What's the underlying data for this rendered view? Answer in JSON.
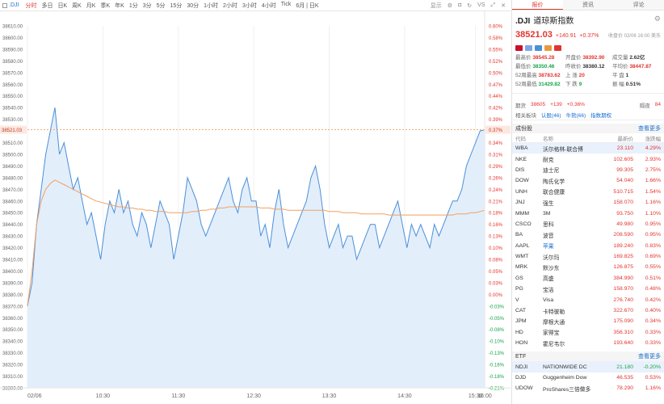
{
  "toolbar": {
    "symbol": ".DJI",
    "periods": [
      "分时",
      "多日",
      "日K",
      "周K",
      "月K",
      "季K",
      "年K",
      "1分",
      "3分",
      "5分",
      "15分",
      "30分",
      "1小时",
      "2小时",
      "3小时",
      "4小时",
      "Tick",
      "6月 | 日K"
    ],
    "active": "分时",
    "display": "显示",
    "vs": "VS"
  },
  "chart": {
    "left_ticks": [
      "38610.00",
      "38600.00",
      "38590.00",
      "38580.00",
      "38570.00",
      "38560.00",
      "38550.00",
      "38540.00",
      "38530.00",
      "38520.00",
      "38510.00",
      "38500.00",
      "38490.00",
      "38480.00",
      "38470.00",
      "38460.00",
      "38450.00",
      "38440.00",
      "38430.00",
      "38420.00",
      "38410.00",
      "38400.00",
      "38390.00",
      "38380.00",
      "38370.00",
      "38360.00",
      "38350.00",
      "38340.00",
      "38330.00",
      "38320.00",
      "38310.00",
      "38300.00"
    ],
    "right_ticks": [
      "0.60%",
      "0.58%",
      "0.55%",
      "0.52%",
      "0.50%",
      "0.47%",
      "0.44%",
      "0.42%",
      "0.39%",
      "0.37%",
      "0.34%",
      "0.31%",
      "0.29%",
      "0.26%",
      "0.24%",
      "0.21%",
      "0.18%",
      "0.16%",
      "0.13%",
      "0.10%",
      "0.08%",
      "0.05%",
      "0.03%",
      "0.00%",
      "-0.03%",
      "-0.05%",
      "-0.08%",
      "-0.10%",
      "-0.13%",
      "-0.16%",
      "-0.18%",
      "-0.21%"
    ],
    "current_label": "38521.03",
    "current_pct": "0.37%",
    "x_labels": [
      "02/06",
      "10:30",
      "11:30",
      "12:30",
      "13:30",
      "14:30",
      "15:30",
      "16:00"
    ],
    "ylim": [
      38300,
      38610
    ],
    "ref": 38380.12,
    "colors": {
      "price": "#4a90d9",
      "avg": "#f0a060",
      "fill": "#e3eefb",
      "dash": "#f0a060",
      "neg": "#1aa34a",
      "pos": "#e3342f"
    }
  },
  "chart_data": {
    "type": "line",
    "title": "",
    "xlabel": "",
    "ylabel": "",
    "x": [
      0,
      1,
      2,
      3,
      4,
      5,
      6,
      7,
      8,
      9,
      10,
      11,
      12,
      13,
      14,
      15,
      16,
      17,
      18,
      19,
      20,
      21,
      22,
      23,
      24,
      25,
      26,
      27,
      28,
      29,
      30,
      31,
      32,
      33,
      34,
      35,
      36,
      37,
      38,
      39,
      40,
      41,
      42,
      43,
      44,
      45,
      46,
      47,
      48,
      49,
      50,
      51,
      52,
      53,
      54,
      55,
      56,
      57,
      58,
      59,
      60,
      61,
      62,
      63,
      64,
      65,
      66,
      67,
      68,
      69,
      70,
      71,
      72,
      73,
      74,
      75,
      76,
      77,
      78,
      79,
      80,
      81,
      82,
      83,
      84,
      85,
      86,
      87,
      88,
      89,
      90,
      91,
      92,
      93,
      94,
      95,
      96,
      97,
      98,
      99,
      100
    ],
    "ylim": [
      38300,
      38610
    ],
    "series": [
      {
        "values": [
          38370,
          38390,
          38440,
          38470,
          38500,
          38520,
          38540,
          38500,
          38510,
          38490,
          38470,
          38480,
          38460,
          38440,
          38450,
          38430,
          38410,
          38440,
          38460,
          38450,
          38470,
          38450,
          38460,
          38440,
          38430,
          38450,
          38440,
          38420,
          38440,
          38460,
          38450,
          38440,
          38410,
          38430,
          38450,
          38480,
          38470,
          38460,
          38440,
          38430,
          38440,
          38450,
          38460,
          38470,
          38480,
          38460,
          38450,
          38470,
          38480,
          38460,
          38460,
          38430,
          38440,
          38420,
          38450,
          38470,
          38440,
          38420,
          38430,
          38440,
          38450,
          38460,
          38480,
          38490,
          38470,
          38440,
          38420,
          38430,
          38440,
          38420,
          38430,
          38430,
          38410,
          38420,
          38430,
          38440,
          38440,
          38420,
          38430,
          38440,
          38450,
          38460,
          38440,
          38420,
          38440,
          38430,
          38440,
          38430,
          38420,
          38440,
          38430,
          38440,
          38450,
          38460,
          38460,
          38470,
          38490,
          38500,
          38510,
          38520,
          38521
        ]
      },
      {
        "values": [
          38370,
          38400,
          38440,
          38460,
          38470,
          38475,
          38478,
          38476,
          38474,
          38472,
          38470,
          38468,
          38466,
          38464,
          38462,
          38460,
          38459,
          38458,
          38457,
          38456,
          38455,
          38455,
          38454,
          38454,
          38453,
          38453,
          38452,
          38452,
          38451,
          38451,
          38451,
          38450,
          38450,
          38450,
          38450,
          38450,
          38451,
          38451,
          38452,
          38452,
          38453,
          38453,
          38454,
          38454,
          38455,
          38455,
          38455,
          38455,
          38455,
          38455,
          38455,
          38454,
          38454,
          38454,
          38453,
          38453,
          38453,
          38452,
          38452,
          38452,
          38452,
          38452,
          38452,
          38452,
          38452,
          38452,
          38451,
          38451,
          38451,
          38450,
          38450,
          38450,
          38450,
          38449,
          38449,
          38449,
          38449,
          38449,
          38449,
          38448,
          38448,
          38448,
          38448,
          38448,
          38448,
          38448,
          38448,
          38448,
          38448,
          38448,
          38448,
          38448,
          38448,
          38448,
          38449,
          38449,
          38449,
          38450,
          38450,
          38451,
          38452
        ]
      }
    ]
  },
  "quote": {
    "tabs": [
      "报价",
      "资讯",
      "评论"
    ],
    "code": ".DJI",
    "name": "道琼斯指数",
    "price": "38521.03",
    "change": "+140.91",
    "pct": "+0.37%",
    "close_note": "收盘价 02/06 16:00 美东",
    "stats": [
      {
        "k": "最高价",
        "v": "38545.28",
        "c": "red",
        "k2": "开盘价",
        "v2": "38392.90",
        "c2": "red",
        "k3": "成交量",
        "v3": "2.62亿",
        "c3": ""
      },
      {
        "k": "最低价",
        "v": "38350.46",
        "c": "green",
        "k2": "昨收价",
        "v2": "38380.12",
        "c2": "",
        "k3": "平均价",
        "v3": "38447.87",
        "c3": "red"
      },
      {
        "k": "52周最高",
        "v": "38783.62",
        "c": "red",
        "k2": "上 涨",
        "v2": "20",
        "c2": "red",
        "k3": "平 盘",
        "v3": "1",
        "c3": ""
      },
      {
        "k": "52周最低",
        "v": "31429.82",
        "c": "green",
        "k2": "下 跌",
        "v2": "9",
        "c2": "green",
        "k3": "振 幅",
        "v3": "0.51%",
        "c3": ""
      }
    ],
    "futures": {
      "label": "期货",
      "price": "38605",
      "chg": "+139",
      "pct": "+0.36%",
      "night_label": "隔夜",
      "night": "84"
    },
    "related": {
      "label": "相关板块",
      "items": [
        "认股(46)",
        "牛熊(66)",
        "指数期权"
      ]
    },
    "constituents": {
      "title": "成份股",
      "more": "查看更多",
      "cols": [
        "代码",
        "名称",
        "最新价",
        "涨跌幅"
      ],
      "rows": [
        {
          "c": "WBA",
          "n": "沃尔格林-联合博",
          "p": "23.110",
          "g": "4.29%",
          "sel": true
        },
        {
          "c": "NKE",
          "n": "耐克",
          "p": "102.605",
          "g": "2.93%"
        },
        {
          "c": "DIS",
          "n": "迪士尼",
          "p": "99.305",
          "g": "2.75%"
        },
        {
          "c": "DOW",
          "n": "陶氏化学",
          "p": "54.040",
          "g": "1.66%"
        },
        {
          "c": "UNH",
          "n": "联合健康",
          "p": "510.715",
          "g": "1.54%"
        },
        {
          "c": "JNJ",
          "n": "强生",
          "p": "158.070",
          "g": "1.16%"
        },
        {
          "c": "MMM",
          "n": "3M",
          "p": "93.750",
          "g": "1.10%"
        },
        {
          "c": "CSCO",
          "n": "思科",
          "p": "49.980",
          "g": "0.95%"
        },
        {
          "c": "BA",
          "n": "波音",
          "p": "208.590",
          "g": "0.95%"
        },
        {
          "c": "AAPL",
          "n": "苹果",
          "p": "189.240",
          "g": "0.83%",
          "lnk": true
        },
        {
          "c": "WMT",
          "n": "沃尔玛",
          "p": "169.825",
          "g": "0.69%"
        },
        {
          "c": "MRK",
          "n": "默沙东",
          "p": "126.875",
          "g": "0.55%"
        },
        {
          "c": "GS",
          "n": "高盛",
          "p": "384.990",
          "g": "0.51%"
        },
        {
          "c": "PG",
          "n": "宝洁",
          "p": "158.970",
          "g": "0.48%"
        },
        {
          "c": "V",
          "n": "Visa",
          "p": "276.740",
          "g": "0.42%"
        },
        {
          "c": "CAT",
          "n": "卡特彼勒",
          "p": "322.670",
          "g": "0.40%"
        },
        {
          "c": "JPM",
          "n": "摩根大通",
          "p": "175.090",
          "g": "0.34%"
        },
        {
          "c": "HD",
          "n": "家得宝",
          "p": "356.310",
          "g": "0.33%"
        },
        {
          "c": "HON",
          "n": "霍尼韦尔",
          "p": "193.640",
          "g": "0.33%"
        }
      ]
    },
    "etf": {
      "title": "ETF",
      "more": "查看更多",
      "rows": [
        {
          "c": "NDJI",
          "n": "NATIONWIDE DC",
          "p": "21.180",
          "g": "-0.20%",
          "sel": true,
          "neg": true
        },
        {
          "c": "DJD",
          "n": "Guggenheim Dow",
          "p": "46.535",
          "g": "0.53%"
        },
        {
          "c": "UDOW",
          "n": "ProShares三倍做多",
          "p": "78.290",
          "g": "1.16%"
        }
      ]
    }
  }
}
